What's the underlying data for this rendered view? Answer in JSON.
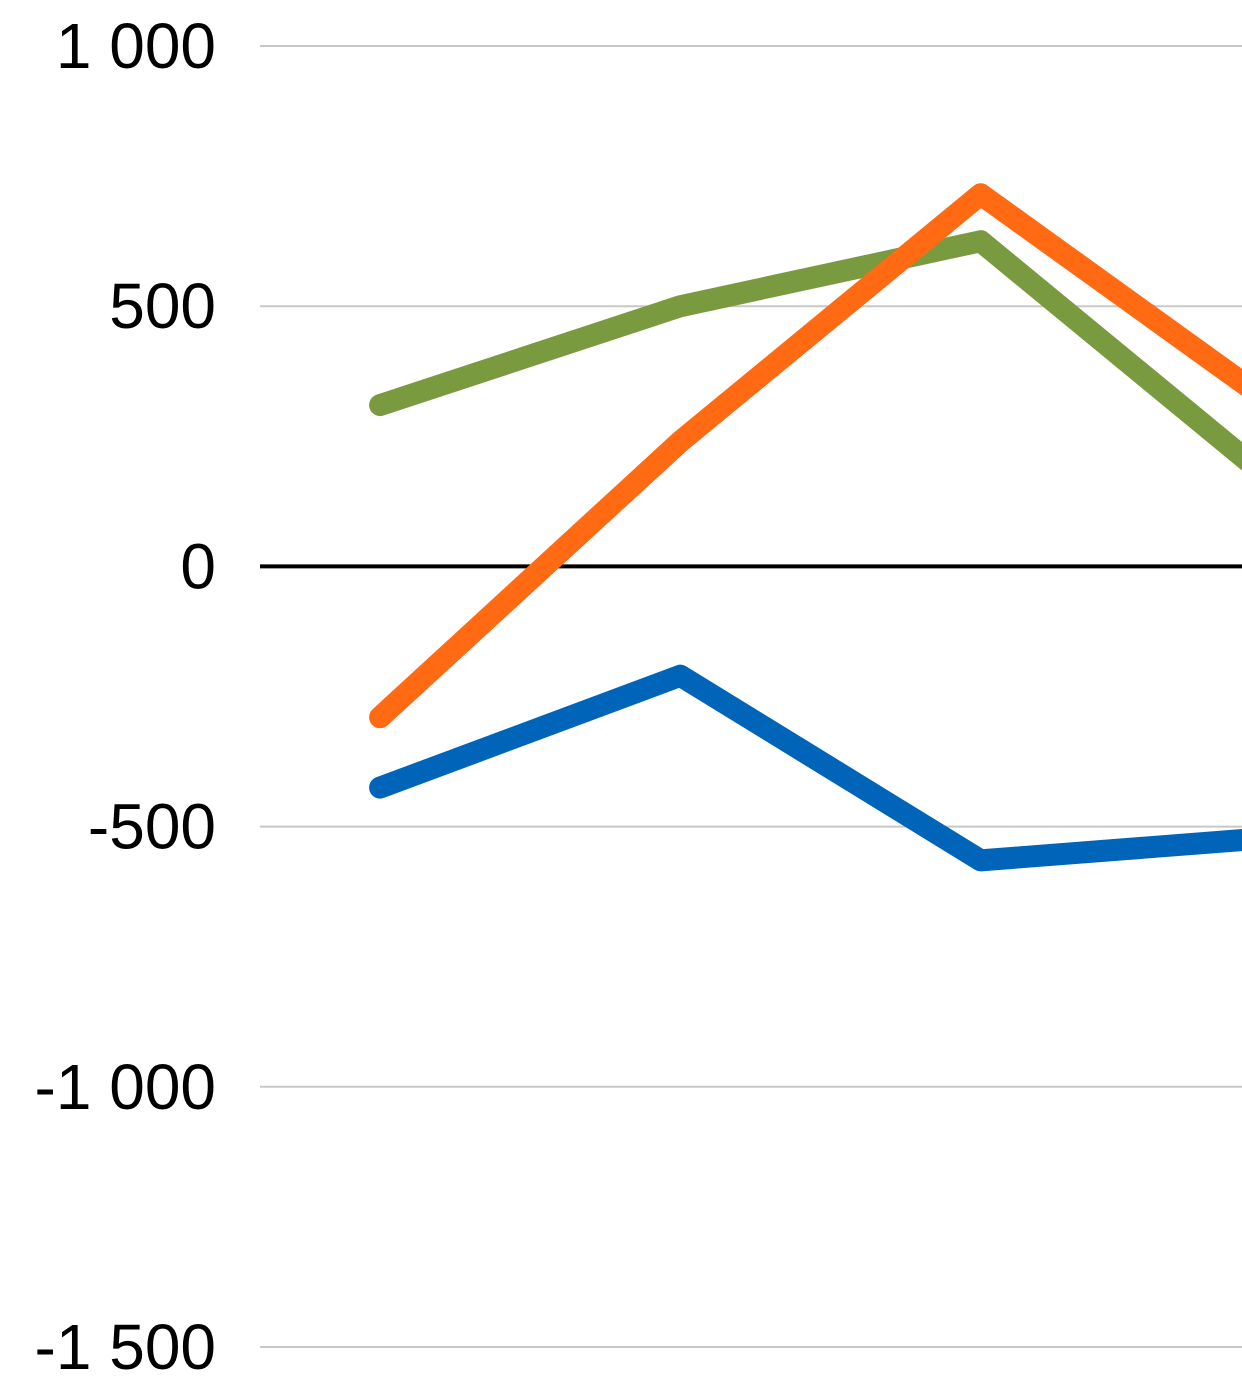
{
  "chart_data": {
    "type": "line",
    "title": "",
    "xlabel": "",
    "ylabel": "",
    "ylim": [
      -1500,
      1000
    ],
    "y_ticks": [
      1000,
      500,
      0,
      -500,
      -1000,
      -1500
    ],
    "y_tick_labels": [
      "1 000",
      "500",
      "0",
      "-500",
      "-1 000",
      "-1 500"
    ],
    "x": [
      1,
      2,
      3,
      4
    ],
    "x_visible_range": [
      0.6,
      3.87
    ],
    "grid": true,
    "legend": "none",
    "series": [
      {
        "color": "#7a9a40",
        "values": [
          310,
          500,
          625,
          150
        ]
      },
      {
        "color": "#ff6a13",
        "values": [
          -290,
          240,
          715,
          300
        ]
      },
      {
        "color": "#0065b8",
        "values": [
          -425,
          -210,
          -565,
          -520
        ]
      }
    ]
  }
}
